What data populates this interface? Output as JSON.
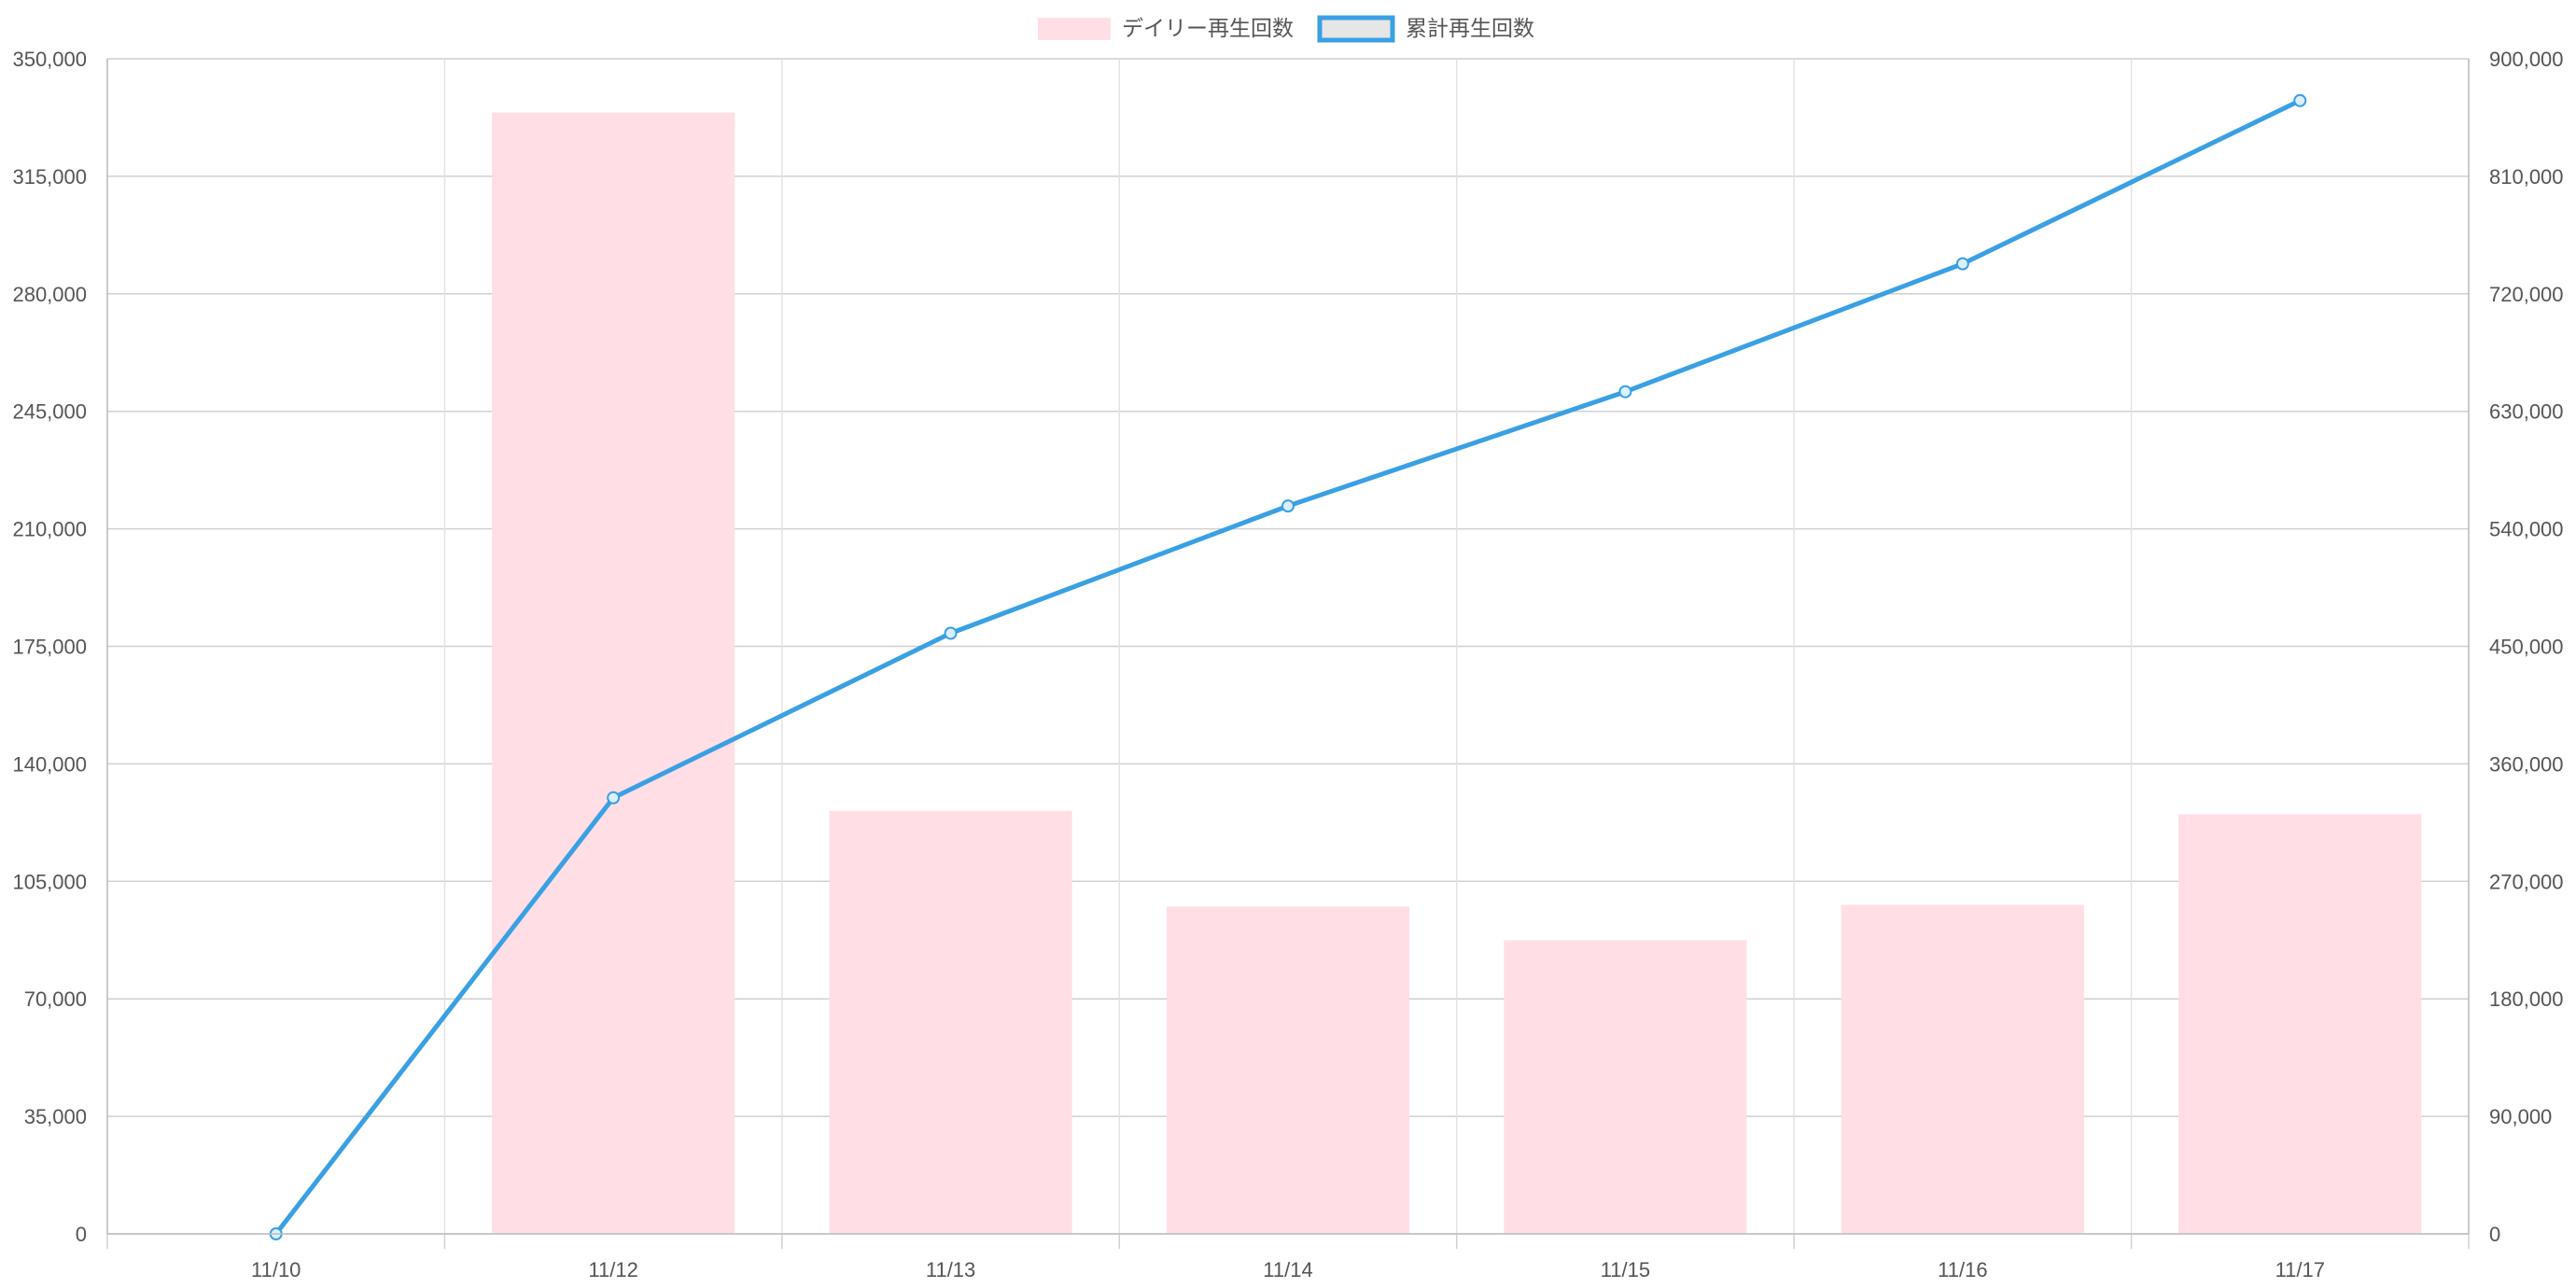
{
  "chart_data": {
    "type": "bar+line",
    "categories": [
      "11/10",
      "11/12",
      "11/13",
      "11/14",
      "11/15",
      "11/16",
      "11/17"
    ],
    "series": [
      {
        "name": "デイリー再生回数",
        "type": "bar",
        "axis": "left",
        "color": "#ffdfe5",
        "values": [
          0,
          334000,
          126000,
          97500,
          87500,
          98000,
          125000
        ]
      },
      {
        "name": "累計再生回数",
        "type": "line",
        "axis": "right",
        "color": "#3aa0e3",
        "legend_fill": "#e6e6e6",
        "values": [
          0,
          334000,
          460000,
          557500,
          645000,
          743000,
          868000
        ]
      }
    ],
    "y_left": {
      "min": 0,
      "max": 350000,
      "ticks": [
        "0",
        "35,000",
        "70,000",
        "105,000",
        "140,000",
        "175,000",
        "210,000",
        "245,000",
        "280,000",
        "315,000",
        "350,000"
      ]
    },
    "y_right": {
      "min": 0,
      "max": 900000,
      "ticks": [
        "0",
        "90,000",
        "180,000",
        "270,000",
        "360,000",
        "450,000",
        "540,000",
        "630,000",
        "720,000",
        "810,000",
        "900,000"
      ]
    },
    "grid": true,
    "legend_position": "top-center",
    "colors": {
      "grid": "#d0d0d0",
      "axis_text": "#555555"
    }
  }
}
